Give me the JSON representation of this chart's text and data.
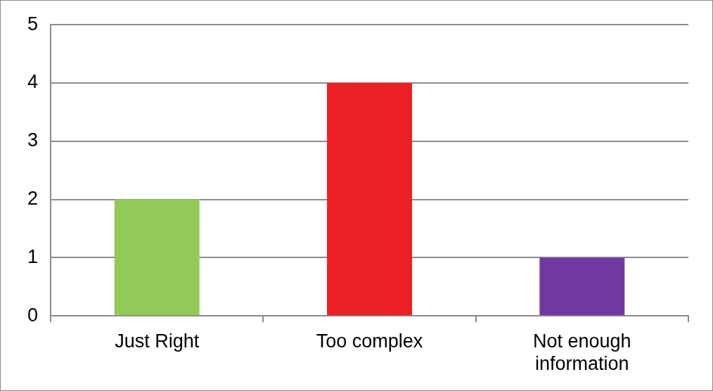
{
  "chart_data": {
    "type": "bar",
    "categories": [
      "Just Right",
      "Too complex",
      "Not enough information"
    ],
    "values": [
      2,
      4,
      1
    ],
    "colors": [
      "#92c957",
      "#ec2024",
      "#7139a0"
    ],
    "ylim": [
      0,
      5
    ],
    "yticks": [
      0,
      1,
      2,
      3,
      4,
      5
    ],
    "grid": "y",
    "legend": false
  }
}
